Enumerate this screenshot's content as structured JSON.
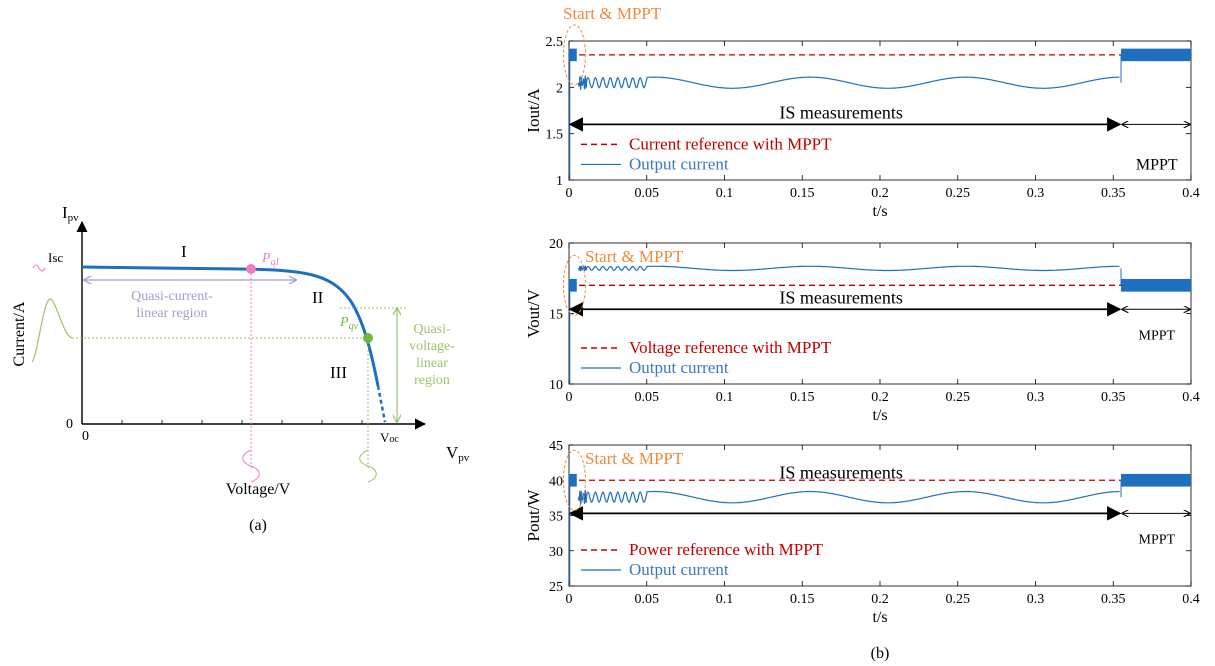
{
  "colors": {
    "curve": "#1f6fbf",
    "reference": "#c00000",
    "annotation": "#f08a3c",
    "region_current": "#a99ad0",
    "region_voltage": "#9cc46a",
    "point_current": "#f07cc4",
    "point_voltage": "#70b83a",
    "black": "#000000"
  },
  "panel_a": {
    "caption": "(a)",
    "y_axis_name": "I",
    "y_axis_sub": "pv",
    "x_axis_name": "V",
    "x_axis_sub": "pv",
    "y_label": "Current/A",
    "x_label": "Voltage/V",
    "origin_x": "0",
    "origin_y": "0",
    "isc": "Isc",
    "voc_main": "V",
    "voc_sub": "oc",
    "region_I": "I",
    "region_II": "II",
    "region_III": "III",
    "pqi_main": "P",
    "pqi_sub": "qI",
    "pqv_main": "P",
    "pqv_sub": "qv",
    "quasi_current_1": "Quasi-current-",
    "quasi_current_2": "linear region",
    "quasi_voltage_1": "Quasi-",
    "quasi_voltage_2": "voltage-",
    "quasi_voltage_3": "linear",
    "quasi_voltage_4": "region"
  },
  "panel_b": {
    "caption": "(b)"
  },
  "chart_data": [
    {
      "type": "line",
      "ylabel": "Iout/A",
      "xlabel": "t/s",
      "xlim": [
        0,
        0.4
      ],
      "ylim": [
        1,
        2.5
      ],
      "x_ticks": [
        0,
        0.05,
        0.1,
        0.15,
        0.2,
        0.25,
        0.3,
        0.35,
        0.4
      ],
      "x_tick_labels": [
        "0",
        "0.05",
        "0.1",
        "0.15",
        "0.2",
        "0.25",
        "0.3",
        "0.35",
        "0.4"
      ],
      "y_ticks": [
        1,
        1.5,
        2,
        2.5
      ],
      "y_tick_labels": [
        "1",
        "1.5",
        "2",
        "2.5"
      ],
      "series": [
        {
          "name": "Current reference with MPPT",
          "style": "dashed",
          "x": [
            0,
            0.4
          ],
          "y": [
            2.35,
            2.35
          ]
        },
        {
          "name": "Output current",
          "style": "solid",
          "mppt_level": 2.35,
          "is_level": 2.05,
          "is_amplitude": 0.06,
          "start_burst": [
            0,
            0.005
          ],
          "mppt_window": [
            0.355,
            0.4
          ]
        }
      ],
      "annotations": {
        "start": "Start & MPPT",
        "is": "IS  measurements",
        "mppt": "MPPT",
        "is_range": [
          0,
          0.355
        ],
        "mppt_range": [
          0.355,
          0.4
        ],
        "arrow_y": 1.6
      }
    },
    {
      "type": "line",
      "ylabel": "Vout/V",
      "xlabel": "t/s",
      "xlim": [
        0,
        0.4
      ],
      "ylim": [
        10,
        20
      ],
      "x_ticks": [
        0,
        0.05,
        0.1,
        0.15,
        0.2,
        0.25,
        0.3,
        0.35,
        0.4
      ],
      "x_tick_labels": [
        "0",
        "0.05",
        "0.1",
        "0.15",
        "0.2",
        "0.25",
        "0.3",
        "0.35",
        "0.4"
      ],
      "y_ticks": [
        10,
        15,
        20
      ],
      "y_tick_labels": [
        "10",
        "15",
        "20"
      ],
      "series": [
        {
          "name": "Voltage reference with MPPT",
          "style": "dashed",
          "x": [
            0,
            0.4
          ],
          "y": [
            17.0,
            17.0
          ]
        },
        {
          "name": "Output current",
          "style": "solid",
          "mppt_level": 17.0,
          "is_level": 18.2,
          "is_amplitude": 0.15,
          "start_burst": [
            0,
            0.005
          ],
          "mppt_window": [
            0.355,
            0.4
          ]
        }
      ],
      "annotations": {
        "start": "Start & MPPT",
        "is": "IS  measurements",
        "mppt": "MPPT",
        "is_range": [
          0,
          0.355
        ],
        "mppt_range": [
          0.355,
          0.4
        ],
        "arrow_y": 15.3
      }
    },
    {
      "type": "line",
      "ylabel": "Pout/W",
      "xlabel": "t/s",
      "xlim": [
        0,
        0.4
      ],
      "ylim": [
        25,
        45
      ],
      "x_ticks": [
        0,
        0.05,
        0.1,
        0.15,
        0.2,
        0.25,
        0.3,
        0.35,
        0.4
      ],
      "x_tick_labels": [
        "0",
        "0.05",
        "0.1",
        "0.15",
        "0.2",
        "0.25",
        "0.3",
        "0.35",
        "0.4"
      ],
      "y_ticks": [
        25,
        30,
        35,
        40,
        45
      ],
      "y_tick_labels": [
        "25",
        "30",
        "35",
        "40",
        "45"
      ],
      "series": [
        {
          "name": "Power reference with MPPT",
          "style": "dashed",
          "x": [
            0,
            0.4
          ],
          "y": [
            40.0,
            40.0
          ]
        },
        {
          "name": "Output current",
          "style": "solid",
          "mppt_level": 40.0,
          "is_level": 37.6,
          "is_amplitude": 0.8,
          "start_burst": [
            0,
            0.005
          ],
          "mppt_window": [
            0.355,
            0.4
          ]
        }
      ],
      "annotations": {
        "start": "Start & MPPT",
        "is": "IS  measurements",
        "mppt": "MPPT",
        "is_range": [
          0,
          0.355
        ],
        "mppt_range": [
          0.355,
          0.4
        ],
        "arrow_y": 35.3
      }
    }
  ]
}
